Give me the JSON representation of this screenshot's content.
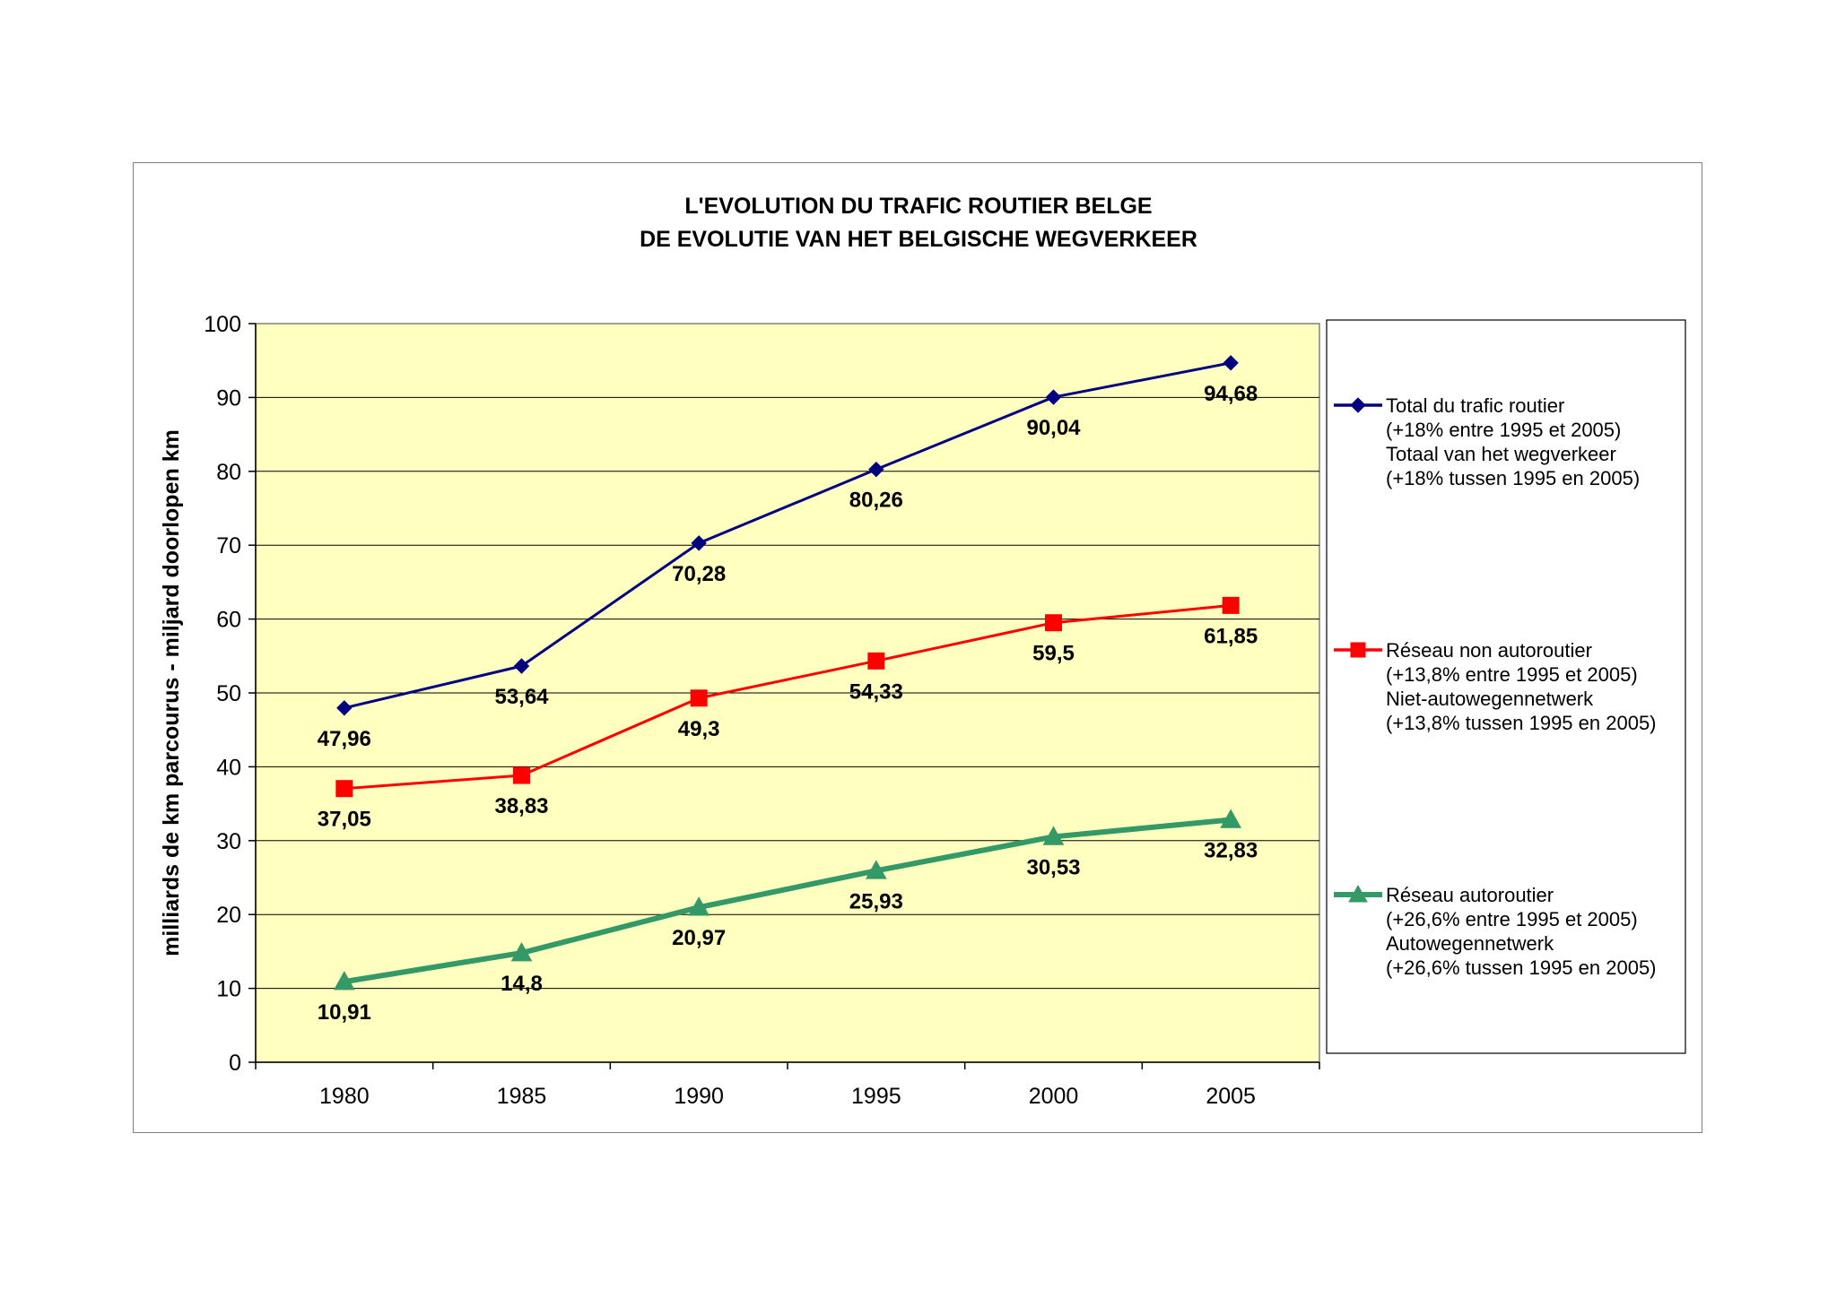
{
  "chart_data": {
    "type": "line",
    "title": [
      "L'EVOLUTION DU TRAFIC ROUTIER BELGE",
      "DE EVOLUTIE VAN HET BELGISCHE WEGVERKEER"
    ],
    "ylabel": "milliards de km parcourus - miljard doorlopen km",
    "xlabel": "",
    "categories": [
      "1980",
      "1985",
      "1990",
      "1995",
      "2000",
      "2005"
    ],
    "ylim": [
      0,
      100
    ],
    "yticks": [
      "0",
      "10",
      "20",
      "30",
      "40",
      "50",
      "60",
      "70",
      "80",
      "90",
      "100"
    ],
    "grid": true,
    "plot_background": "#ffffc0",
    "legend_position": "right",
    "series": [
      {
        "name": "Total du trafic routier",
        "legend_lines": [
          "Total du trafic routier",
          "(+18% entre 1995 et 2005)",
          "Totaal van het wegverkeer",
          "(+18% tussen 1995 en 2005)"
        ],
        "values": [
          47.96,
          53.64,
          70.28,
          80.26,
          90.04,
          94.68
        ],
        "labels": [
          "47,96",
          "53,64",
          "70,28",
          "80,26",
          "90,04",
          "94,68"
        ],
        "color": "#000080",
        "marker": "diamond"
      },
      {
        "name": "Réseau non autoroutier",
        "legend_lines": [
          "Réseau non autoroutier",
          "(+13,8% entre 1995 et 2005)",
          "Niet-autowegennetwerk",
          "(+13,8% tussen 1995 en 2005)"
        ],
        "values": [
          37.05,
          38.83,
          49.3,
          54.33,
          59.5,
          61.85
        ],
        "labels": [
          "37,05",
          "38,83",
          "49,3",
          "54,33",
          "59,5",
          "61,85"
        ],
        "color": "#ff0000",
        "marker": "square"
      },
      {
        "name": "Réseau autoroutier",
        "legend_lines": [
          "Réseau autoroutier",
          "(+26,6% entre 1995 et 2005)",
          "Autowegennetwerk",
          "(+26,6% tussen 1995 en 2005)"
        ],
        "values": [
          10.91,
          14.8,
          20.97,
          25.93,
          30.53,
          32.83
        ],
        "labels": [
          "10,91",
          "14,8",
          "20,97",
          "25,93",
          "30,53",
          "32,83"
        ],
        "color": "#339966",
        "marker": "triangle"
      }
    ]
  }
}
